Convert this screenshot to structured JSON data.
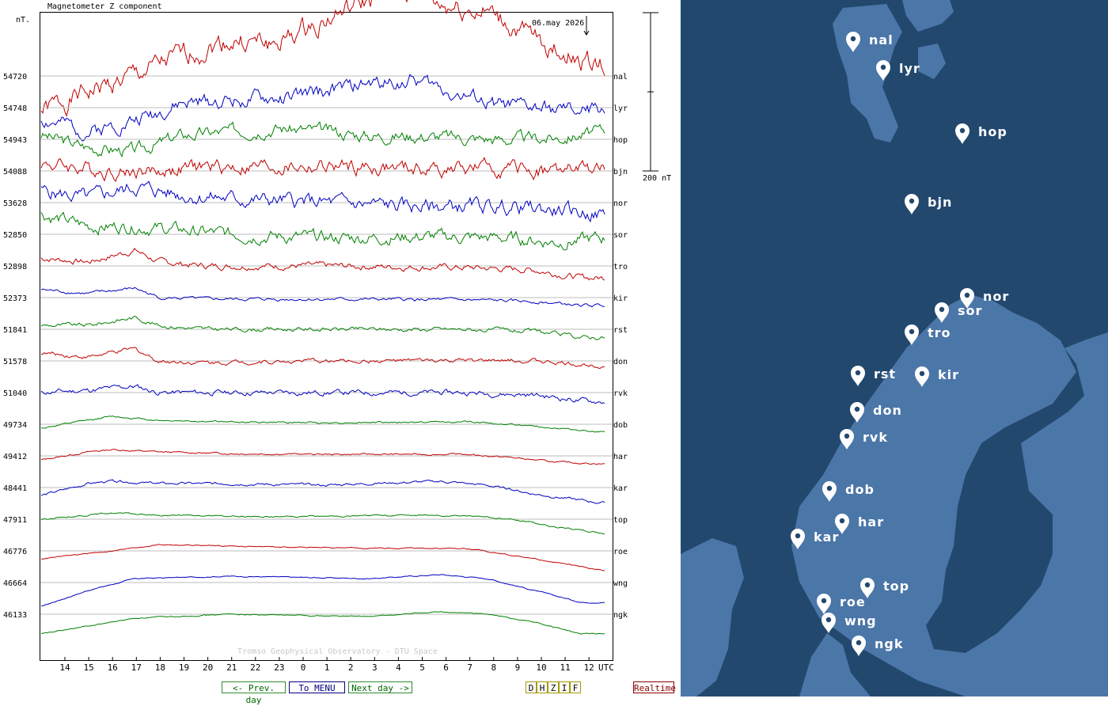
{
  "chart_data": {
    "type": "line",
    "title": "Magnetometer Z component",
    "date_label": "06.may 2026",
    "ylabel": "nT.",
    "scale_label": "200 nT",
    "footer": "Tromso Geophysical Observatory - DTU Space",
    "x_unit": "UTC",
    "x_ticks": [
      "14",
      "15",
      "16",
      "17",
      "18",
      "19",
      "20",
      "21",
      "22",
      "23",
      "0",
      "1",
      "2",
      "3",
      "4",
      "5",
      "6",
      "7",
      "8",
      "9",
      "10",
      "11",
      "12"
    ],
    "series": [
      {
        "name": "nal",
        "baseline": "54720",
        "color": "#c00000",
        "amp": 42,
        "offset": 0,
        "seed": 1,
        "profile": [
          [
            0,
            -45
          ],
          [
            2,
            -20
          ],
          [
            4,
            0
          ],
          [
            6,
            25
          ],
          [
            8,
            45
          ],
          [
            10,
            40
          ],
          [
            12,
            70
          ],
          [
            14,
            95
          ],
          [
            16,
            110
          ],
          [
            17,
            90
          ],
          [
            19,
            80
          ],
          [
            21,
            45
          ],
          [
            23,
            20
          ],
          [
            24,
            15
          ]
        ],
        "noise": 10
      },
      {
        "name": "lyr",
        "baseline": "54748",
        "color": "#0000c0",
        "profile": [
          [
            0,
            -15
          ],
          [
            2,
            -30
          ],
          [
            4,
            -15
          ],
          [
            6,
            5
          ],
          [
            8,
            10
          ],
          [
            10,
            10
          ],
          [
            12,
            20
          ],
          [
            14,
            30
          ],
          [
            16,
            35
          ],
          [
            17,
            25
          ],
          [
            19,
            5
          ],
          [
            21,
            0
          ],
          [
            23,
            -5
          ],
          [
            24,
            0
          ]
        ],
        "noise": 7,
        "seed": 2
      },
      {
        "name": "hop",
        "baseline": "54943",
        "color": "#008000",
        "profile": [
          [
            0,
            5
          ],
          [
            2,
            -10
          ],
          [
            4,
            -15
          ],
          [
            6,
            5
          ],
          [
            8,
            10
          ],
          [
            10,
            15
          ],
          [
            12,
            10
          ],
          [
            14,
            5
          ],
          [
            16,
            5
          ],
          [
            18,
            2
          ],
          [
            20,
            0
          ],
          [
            22,
            2
          ],
          [
            24,
            10
          ]
        ],
        "noise": 6,
        "seed": 3
      },
      {
        "name": "bjn",
        "baseline": "54088",
        "color": "#c00000",
        "profile": [
          [
            0,
            10
          ],
          [
            3,
            0
          ],
          [
            5,
            0
          ],
          [
            7,
            5
          ],
          [
            9,
            5
          ],
          [
            12,
            5
          ],
          [
            16,
            2
          ],
          [
            19,
            3
          ],
          [
            22,
            0
          ],
          [
            24,
            3
          ]
        ],
        "noise": 7,
        "seed": 4
      },
      {
        "name": "nor",
        "baseline": "53628",
        "color": "#0000c0",
        "profile": [
          [
            0,
            15
          ],
          [
            2,
            5
          ],
          [
            4,
            20
          ],
          [
            6,
            10
          ],
          [
            8,
            5
          ],
          [
            12,
            0
          ],
          [
            16,
            -5
          ],
          [
            20,
            -5
          ],
          [
            22,
            -10
          ],
          [
            24,
            -15
          ]
        ],
        "noise": 7,
        "seed": 5
      },
      {
        "name": "sor",
        "baseline": "52850",
        "color": "#008000",
        "profile": [
          [
            0,
            25
          ],
          [
            2,
            10
          ],
          [
            4,
            10
          ],
          [
            6,
            5
          ],
          [
            8,
            0
          ],
          [
            12,
            -5
          ],
          [
            16,
            -3
          ],
          [
            20,
            -5
          ],
          [
            22,
            -10
          ],
          [
            24,
            -5
          ]
        ],
        "noise": 6,
        "seed": 6
      },
      {
        "name": "tro",
        "baseline": "52898",
        "color": "#c00000",
        "profile": [
          [
            0,
            10
          ],
          [
            2,
            5
          ],
          [
            4,
            20
          ],
          [
            5,
            5
          ],
          [
            7,
            0
          ],
          [
            12,
            0
          ],
          [
            18,
            -2
          ],
          [
            21,
            -5
          ],
          [
            23,
            -15
          ],
          [
            24,
            -15
          ]
        ],
        "noise": 3,
        "seed": 7
      },
      {
        "name": "kir",
        "baseline": "52373",
        "color": "#0000c0",
        "profile": [
          [
            0,
            10
          ],
          [
            2,
            5
          ],
          [
            4,
            12
          ],
          [
            5,
            0
          ],
          [
            7,
            -2
          ],
          [
            12,
            -2
          ],
          [
            18,
            -3
          ],
          [
            21,
            -5
          ],
          [
            23,
            -10
          ],
          [
            24,
            -10
          ]
        ],
        "noise": 1.5,
        "seed": 8
      },
      {
        "name": "rst",
        "baseline": "51841",
        "color": "#008000",
        "profile": [
          [
            0,
            5
          ],
          [
            2,
            5
          ],
          [
            4,
            15
          ],
          [
            5,
            5
          ],
          [
            7,
            0
          ],
          [
            12,
            0
          ],
          [
            18,
            0
          ],
          [
            21,
            -3
          ],
          [
            23,
            -10
          ],
          [
            24,
            -10
          ]
        ],
        "noise": 2,
        "seed": 9
      },
      {
        "name": "don",
        "baseline": "51578",
        "color": "#c00000",
        "profile": [
          [
            0,
            10
          ],
          [
            2,
            5
          ],
          [
            4,
            15
          ],
          [
            5,
            0
          ],
          [
            7,
            -2
          ],
          [
            12,
            0
          ],
          [
            18,
            0
          ],
          [
            21,
            0
          ],
          [
            23,
            -5
          ],
          [
            24,
            -5
          ]
        ],
        "noise": 2,
        "seed": 10
      },
      {
        "name": "rvk",
        "baseline": "51040",
        "color": "#0000c0",
        "profile": [
          [
            0,
            0
          ],
          [
            2,
            3
          ],
          [
            4,
            8
          ],
          [
            5,
            0
          ],
          [
            7,
            0
          ],
          [
            12,
            0
          ],
          [
            18,
            0
          ],
          [
            21,
            -3
          ],
          [
            23,
            -10
          ],
          [
            24,
            -12
          ]
        ],
        "noise": 2.5,
        "seed": 11
      },
      {
        "name": "dob",
        "baseline": "49734",
        "color": "#008000",
        "profile": [
          [
            0,
            -5
          ],
          [
            2,
            5
          ],
          [
            3,
            10
          ],
          [
            5,
            5
          ],
          [
            8,
            3
          ],
          [
            12,
            2
          ],
          [
            18,
            3
          ],
          [
            20,
            0
          ],
          [
            22,
            -5
          ],
          [
            24,
            -10
          ]
        ],
        "noise": 0.8,
        "seed": 12
      },
      {
        "name": "har",
        "baseline": "49412",
        "color": "#c00000",
        "profile": [
          [
            0,
            -5
          ],
          [
            2,
            5
          ],
          [
            3,
            8
          ],
          [
            5,
            5
          ],
          [
            8,
            3
          ],
          [
            12,
            2
          ],
          [
            18,
            2
          ],
          [
            20,
            -2
          ],
          [
            22,
            -8
          ],
          [
            24,
            -10
          ]
        ],
        "noise": 0.8,
        "seed": 13
      },
      {
        "name": "kar",
        "baseline": "48441",
        "color": "#0000c0",
        "profile": [
          [
            0,
            -10
          ],
          [
            2,
            5
          ],
          [
            3,
            8
          ],
          [
            5,
            5
          ],
          [
            8,
            5
          ],
          [
            12,
            3
          ],
          [
            17,
            8
          ],
          [
            19,
            3
          ],
          [
            21,
            -8
          ],
          [
            24,
            -20
          ]
        ],
        "noise": 1.2,
        "seed": 14
      },
      {
        "name": "top",
        "baseline": "47911",
        "color": "#008000",
        "profile": [
          [
            0,
            0
          ],
          [
            3,
            8
          ],
          [
            5,
            5
          ],
          [
            10,
            3
          ],
          [
            15,
            5
          ],
          [
            18,
            5
          ],
          [
            20,
            0
          ],
          [
            22,
            -10
          ],
          [
            24,
            -18
          ]
        ],
        "noise": 0.7,
        "seed": 15
      },
      {
        "name": "roe",
        "baseline": "46776",
        "color": "#c00000",
        "profile": [
          [
            0,
            -10
          ],
          [
            3,
            0
          ],
          [
            5,
            8
          ],
          [
            10,
            5
          ],
          [
            15,
            3
          ],
          [
            18,
            3
          ],
          [
            20,
            -5
          ],
          [
            22,
            -15
          ],
          [
            24,
            -25
          ]
        ],
        "noise": 0.5,
        "seed": 16
      },
      {
        "name": "wng",
        "baseline": "46664",
        "color": "#0000c0",
        "profile": [
          [
            0,
            -30
          ],
          [
            2,
            -10
          ],
          [
            4,
            5
          ],
          [
            8,
            8
          ],
          [
            14,
            5
          ],
          [
            17,
            10
          ],
          [
            19,
            5
          ],
          [
            21,
            -10
          ],
          [
            23,
            -25
          ],
          [
            24,
            -25
          ]
        ],
        "noise": 0.5,
        "seed": 17
      },
      {
        "name": "ngk",
        "baseline": "46133",
        "color": "#008000",
        "profile": [
          [
            0,
            -25
          ],
          [
            2,
            -15
          ],
          [
            4,
            -5
          ],
          [
            8,
            0
          ],
          [
            14,
            -3
          ],
          [
            17,
            3
          ],
          [
            19,
            0
          ],
          [
            21,
            -10
          ],
          [
            23,
            -25
          ],
          [
            24,
            -25
          ]
        ],
        "noise": 0.5,
        "seed": 18
      }
    ]
  },
  "nav": {
    "prev_label": "<- Prev. day",
    "menu_label": "To MENU",
    "next_label": "Next day ->",
    "modes": [
      "D",
      "H",
      "Z",
      "I",
      "F"
    ],
    "realtime_label": "Realtime"
  },
  "map": {
    "stations": [
      {
        "code": "nal"
      },
      {
        "code": "lyr"
      },
      {
        "code": "hop"
      },
      {
        "code": "bjn"
      },
      {
        "code": "nor"
      },
      {
        "code": "sor"
      },
      {
        "code": "tro"
      },
      {
        "code": "rst"
      },
      {
        "code": "kir"
      },
      {
        "code": "don"
      },
      {
        "code": "rvk"
      },
      {
        "code": "dob"
      },
      {
        "code": "har"
      },
      {
        "code": "kar"
      },
      {
        "code": "top"
      },
      {
        "code": "roe"
      },
      {
        "code": "wng"
      },
      {
        "code": "ngk"
      }
    ]
  }
}
